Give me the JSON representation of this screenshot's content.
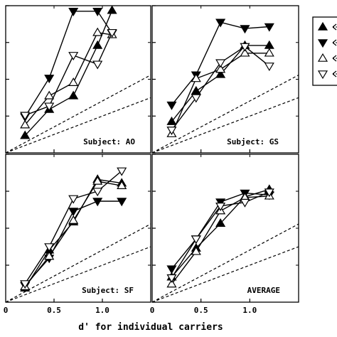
{
  "chart_data": [
    {
      "type": "line",
      "panel_label": "Subject:  AO",
      "series": [
        {
          "marker": "up-filled",
          "points": [
            [
              0.2,
              0.47
            ],
            [
              0.45,
              1.18
            ],
            [
              0.7,
              1.55
            ],
            [
              0.95,
              2.92
            ],
            [
              1.1,
              3.87
            ]
          ]
        },
        {
          "marker": "down-filled",
          "points": [
            [
              0.2,
              0.98
            ],
            [
              0.45,
              2.03
            ],
            [
              0.7,
              3.85
            ],
            [
              0.95,
              3.85
            ],
            [
              1.1,
              3.25
            ]
          ]
        },
        {
          "marker": "up-open",
          "points": [
            [
              0.2,
              0.76
            ],
            [
              0.45,
              1.55
            ],
            [
              0.7,
              1.91
            ],
            [
              0.95,
              3.27
            ],
            [
              1.1,
              3.21
            ]
          ]
        },
        {
          "marker": "down-open",
          "points": [
            [
              0.2,
              1.02
            ],
            [
              0.45,
              1.27
            ],
            [
              0.7,
              2.65
            ],
            [
              0.95,
              2.41
            ],
            [
              1.1,
              3.27
            ]
          ]
        }
      ]
    },
    {
      "type": "line",
      "panel_label": "Subject:  GS",
      "series": [
        {
          "marker": "up-filled",
          "points": [
            [
              0.2,
              0.85
            ],
            [
              0.45,
              1.68
            ],
            [
              0.7,
              2.13
            ],
            [
              0.95,
              2.92
            ],
            [
              1.2,
              2.92
            ]
          ]
        },
        {
          "marker": "down-filled",
          "points": [
            [
              0.2,
              1.3
            ],
            [
              0.45,
              2.12
            ],
            [
              0.7,
              3.55
            ],
            [
              0.95,
              3.38
            ],
            [
              1.2,
              3.43
            ]
          ]
        },
        {
          "marker": "up-open",
          "points": [
            [
              0.2,
              0.52
            ],
            [
              0.45,
              2.02
            ],
            [
              0.7,
              2.27
            ],
            [
              0.95,
              2.71
            ],
            [
              1.2,
              2.71
            ]
          ]
        },
        {
          "marker": "down-open",
          "points": [
            [
              0.2,
              0.62
            ],
            [
              0.45,
              1.5
            ],
            [
              0.7,
              2.45
            ],
            [
              0.95,
              2.89
            ],
            [
              1.2,
              2.36
            ]
          ]
        }
      ]
    },
    {
      "type": "line",
      "panel_label": "Subject:  SF",
      "series": [
        {
          "marker": "up-filled",
          "points": [
            [
              0.2,
              0.38
            ],
            [
              0.45,
              1.41
            ],
            [
              0.7,
              2.17
            ],
            [
              0.95,
              3.32
            ],
            [
              1.2,
              3.22
            ]
          ]
        },
        {
          "marker": "down-filled",
          "points": [
            [
              0.2,
              0.45
            ],
            [
              0.45,
              1.19
            ],
            [
              0.7,
              2.46
            ],
            [
              0.95,
              2.73
            ],
            [
              1.2,
              2.73
            ]
          ]
        },
        {
          "marker": "up-open",
          "points": [
            [
              0.2,
              0.42
            ],
            [
              0.45,
              1.24
            ],
            [
              0.7,
              2.21
            ],
            [
              0.95,
              3.27
            ],
            [
              1.2,
              3.15
            ]
          ]
        },
        {
          "marker": "down-open",
          "points": [
            [
              0.2,
              0.5
            ],
            [
              0.45,
              1.5
            ],
            [
              0.7,
              2.8
            ],
            [
              0.95,
              3.0
            ],
            [
              1.2,
              3.55
            ]
          ]
        }
      ]
    },
    {
      "type": "line",
      "panel_label": "AVERAGE",
      "series": [
        {
          "marker": "up-filled",
          "points": [
            [
              0.2,
              0.68
            ],
            [
              0.45,
              1.46
            ],
            [
              0.7,
              2.13
            ],
            [
              0.95,
              2.85
            ],
            [
              1.2,
              3.05
            ]
          ]
        },
        {
          "marker": "down-filled",
          "points": [
            [
              0.2,
              0.9
            ],
            [
              0.45,
              1.71
            ],
            [
              0.7,
              2.71
            ],
            [
              0.95,
              2.95
            ],
            [
              1.2,
              2.9
            ]
          ]
        },
        {
          "marker": "up-open",
          "points": [
            [
              0.2,
              0.49
            ],
            [
              0.45,
              1.37
            ],
            [
              0.7,
              2.47
            ],
            [
              0.95,
              2.83
            ],
            [
              1.2,
              2.87
            ]
          ]
        },
        {
          "marker": "down-open",
          "points": [
            [
              0.2,
              0.66
            ],
            [
              0.45,
              1.71
            ],
            [
              0.7,
              2.6
            ],
            [
              0.95,
              2.7
            ],
            [
              1.2,
              2.98
            ]
          ]
        }
      ]
    }
  ],
  "axes": {
    "xlabel": "d' for individual carriers",
    "xlim": [
      0,
      1.5
    ],
    "ylim": [
      0,
      4.0
    ],
    "x_ticks": [
      0.5,
      1.0
    ],
    "x_tick_labels_left": [
      "0",
      "0.5",
      "1.0"
    ],
    "x_tick_labels_right": [
      "0",
      "0.5",
      "1.0"
    ],
    "dashed_reference_slopes": [
      1.0,
      1.41
    ]
  },
  "legend": {
    "placement": "top-right",
    "markers": [
      "up-filled",
      "down-filled",
      "up-open",
      "down-open"
    ]
  }
}
